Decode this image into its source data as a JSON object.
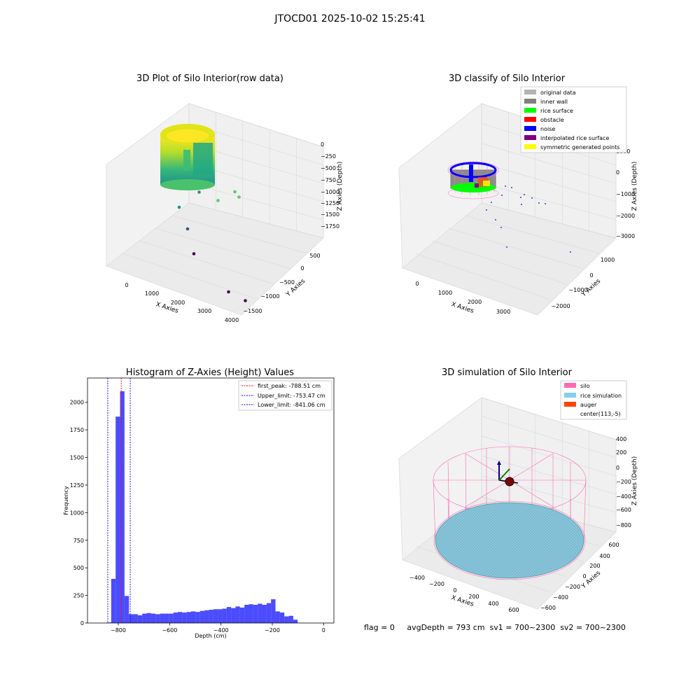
{
  "suptitle": "JTOCD01 2025-10-02 15:25:41",
  "status_line": "flag = 0     avgDepth = 793 cm  sv1 = 700~2300  sv2 = 700~2300",
  "colors": {
    "silo": "#ff69b4",
    "rice_simulation": "#87ceeb",
    "auger": "#ff4500",
    "histogram_bar": "#0000ff",
    "first_peak": "#ff0000",
    "limits": "#0000ff",
    "original_data": "#b3b3b3",
    "inner_wall": "#808080",
    "rice_surface": "#00ff00",
    "obstacle": "#ff0000",
    "noise": "#0000ff",
    "interpolated_rice_surface": "#800080",
    "symmetric_generated_points": "#ffff00"
  },
  "chart_data": [
    {
      "type": "scatter",
      "projection": "3d",
      "title": "3D Plot of Silo Interior(row data)",
      "xlabel": "X Axies",
      "ylabel": "Y Axies",
      "zlabel": "Z Axies (Depth)",
      "x_ticks": [
        "0",
        "1000",
        "2000",
        "3000",
        "4000"
      ],
      "y_ticks": [
        "500",
        "0",
        "−500",
        "−1000",
        "−1500"
      ],
      "z_ticks": [
        "0",
        "−250",
        "−500",
        "−750",
        "−1000",
        "−1250",
        "−1500",
        "−1750"
      ],
      "colormap": "viridis",
      "outlier_points": [
        {
          "x": 3900,
          "y": -1500,
          "z": -1900
        },
        {
          "x": 3300,
          "y": -1400,
          "z": -1850
        },
        {
          "x": 1800,
          "y": -800,
          "z": -1650
        },
        {
          "x": 1400,
          "y": -500,
          "z": -1450
        },
        {
          "x": 1000,
          "y": -300,
          "z": -1250
        },
        {
          "x": 1500,
          "y": -100,
          "z": -1100
        },
        {
          "x": 2500,
          "y": -700,
          "z": -900
        },
        {
          "x": 3300,
          "y": -900,
          "z": -720
        },
        {
          "x": 3100,
          "y": -800,
          "z": -700
        }
      ]
    },
    {
      "type": "scatter",
      "projection": "3d",
      "title": "3D classify of Silo Interior",
      "xlabel": "X Axies",
      "ylabel": "Y Axies",
      "zlabel": "Z Axies (Depth)",
      "x_ticks": [
        "0",
        "1000",
        "2000",
        "3000"
      ],
      "y_ticks": [
        "1000",
        "0",
        "−1000",
        "−2000"
      ],
      "z_ticks": [
        "1000",
        "0",
        "−1000",
        "−2000",
        "−3000"
      ],
      "legend_position": "top-right",
      "legend": [
        {
          "label": "original data",
          "color": "#b3b3b3"
        },
        {
          "label": "inner wall",
          "color": "#808080"
        },
        {
          "label": "rice surface",
          "color": "#00ff00"
        },
        {
          "label": "obstacle",
          "color": "#ff0000"
        },
        {
          "label": "noise",
          "color": "#0000ff"
        },
        {
          "label": "interpolated rice surface",
          "color": "#800080"
        },
        {
          "label": "symmetric generated points",
          "color": "#ffff00"
        }
      ]
    },
    {
      "type": "bar",
      "title": "Histogram of Z-Axies (Height) Values",
      "xlabel": "Depth (cm)",
      "ylabel": "Frequency",
      "xlim": [
        -920,
        40
      ],
      "ylim": [
        0,
        2220
      ],
      "x_ticks": [
        -800,
        -600,
        -400,
        -200,
        0
      ],
      "x_tick_labels": [
        "−800",
        "−600",
        "−400",
        "−200",
        "0"
      ],
      "y_ticks": [
        0,
        250,
        500,
        750,
        1000,
        1250,
        1500,
        1750,
        2000
      ],
      "y_tick_labels": [
        "0",
        "250",
        "500",
        "750",
        "1000",
        "1250",
        "1500",
        "1750",
        "2000"
      ],
      "bin_start": -845,
      "bin_width": 17.3,
      "counts": [
        5,
        400,
        1870,
        2100,
        245,
        80,
        80,
        70,
        85,
        90,
        85,
        80,
        85,
        85,
        85,
        95,
        100,
        95,
        100,
        105,
        100,
        110,
        115,
        120,
        125,
        125,
        130,
        145,
        135,
        150,
        140,
        165,
        170,
        165,
        175,
        165,
        180,
        215,
        105,
        95,
        60,
        65,
        30
      ],
      "vlines": [
        {
          "label": "first_peak: -788.51 cm",
          "value": -788.51,
          "color": "#ff0000"
        },
        {
          "label": "Upper_limit: -753.47 cm",
          "value": -753.47,
          "color": "#0000ff"
        },
        {
          "label": "Lower_limit: -841.06 cm",
          "value": -841.06,
          "color": "#0000ff"
        }
      ],
      "legend_position": "top-right"
    },
    {
      "type": "scatter",
      "projection": "3d",
      "title": "3D simulation of Silo Interior",
      "xlabel": "X Axies",
      "ylabel": "Y Axies",
      "zlabel": "Z Axies (Depth)",
      "x_ticks": [
        "−400",
        "−200",
        "0",
        "200",
        "400",
        "600"
      ],
      "y_ticks": [
        "600",
        "400",
        "200",
        "0",
        "−200",
        "−400",
        "−600"
      ],
      "z_ticks": [
        "400",
        "200",
        "0",
        "−200",
        "−400",
        "−600",
        "−800"
      ],
      "legend_position": "top-right",
      "legend": [
        {
          "label": "silo",
          "color": "#ff69b4"
        },
        {
          "label": "rice simulation",
          "color": "#87ceeb"
        },
        {
          "label": "auger",
          "color": "#ff4500"
        },
        {
          "label": "center(113,-5)",
          "color": "#ffffff"
        }
      ]
    }
  ]
}
